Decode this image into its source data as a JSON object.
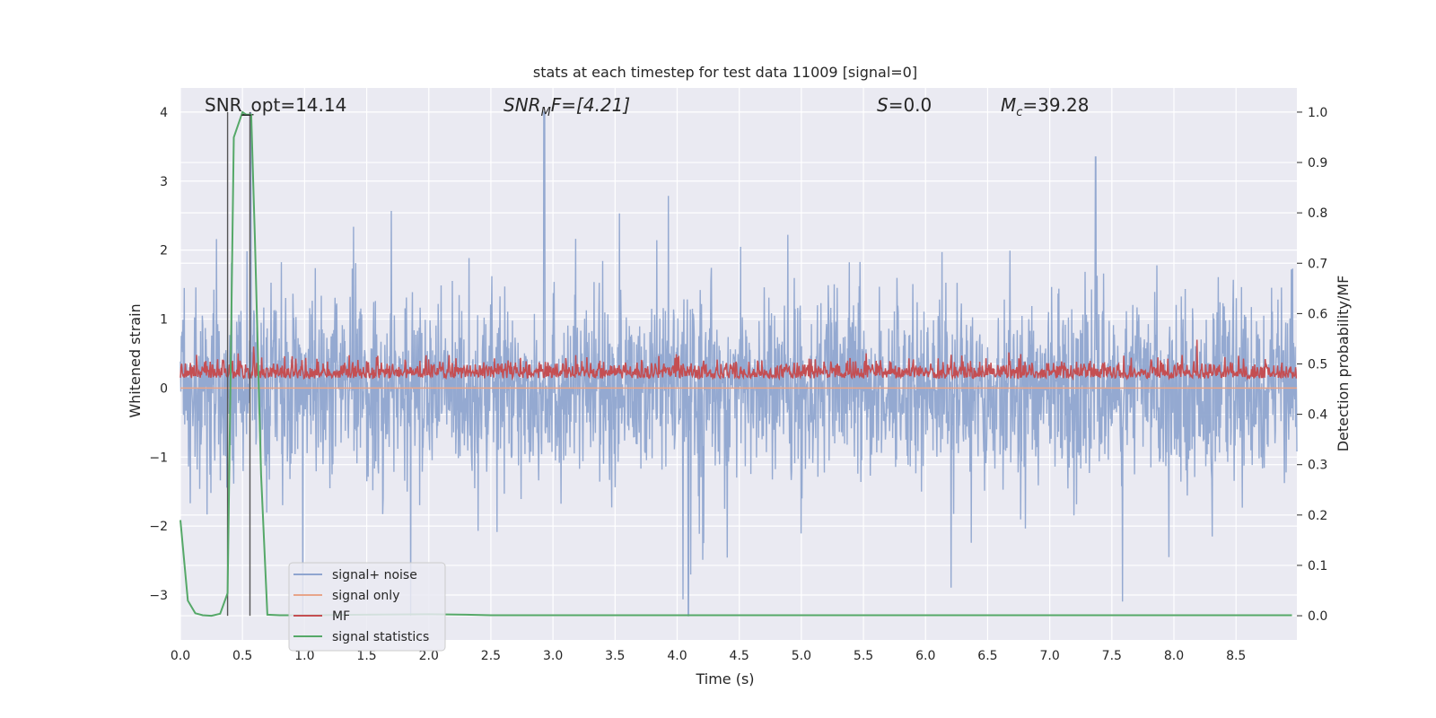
{
  "chart_data": {
    "type": "line",
    "title": "stats at each timestep for test data 11009 [signal=0]",
    "xlabel": "Time (s)",
    "ylabel": "Whitened strain",
    "y2label": "Detection probability/MF",
    "xlim": [
      0.0,
      8.99
    ],
    "ylim": [
      -3.65,
      4.35
    ],
    "y2lim": [
      -0.048,
      1.048
    ],
    "xticks": [
      "0.0",
      "0.5",
      "1.0",
      "1.5",
      "2.0",
      "2.5",
      "3.0",
      "3.5",
      "4.0",
      "4.5",
      "5.0",
      "5.5",
      "6.0",
      "6.5",
      "7.0",
      "7.5",
      "8.0",
      "8.5"
    ],
    "yticks": [
      "4",
      "3",
      "2",
      "1",
      "0",
      "−1",
      "−2",
      "−3"
    ],
    "y2ticks": [
      "1.0",
      "0.9",
      "0.8",
      "0.7",
      "0.6",
      "0.5",
      "0.4",
      "0.3",
      "0.2",
      "0.1",
      "0.0"
    ],
    "annotations": {
      "snr_opt": "SNR_opt=14.14",
      "snr_mf_prefix": "SNR",
      "snr_mf_sub": "M",
      "snr_mf_suffix": "F=[4.21]",
      "s_label": "S",
      "s_value": "=0.0",
      "mc_label": "M",
      "mc_sub": "c",
      "mc_value": "=39.28"
    },
    "legend": [
      "signal+ noise",
      "signal only",
      "MF",
      "signal statistics"
    ],
    "vlines_x": [
      0.38,
      0.56
    ],
    "series": [
      {
        "name": "signal+ noise",
        "color": "#8fa5cf",
        "description": "noisy whitened strain, roughly ±1.2 envelope with spikes to ~4 near t=2.93 and ~-3.3 near t=4.09",
        "range": [
          -3.3,
          4.0
        ]
      },
      {
        "name": "signal only",
        "color": "#e8a58a",
        "values_const": 0.0
      },
      {
        "name": "MF",
        "color": "#c44e52",
        "description": "matched filter output, 0.0 to 1.0, centered ~0.25"
      },
      {
        "name": "signal statistics",
        "color": "#55a868",
        "x": [
          0.0,
          0.06,
          0.12,
          0.18,
          0.25,
          0.32,
          0.38,
          0.43,
          0.5,
          0.53,
          0.57,
          0.6,
          0.65,
          0.7,
          0.8,
          1.0,
          1.5,
          2.0,
          2.3,
          2.5,
          3.0,
          4.0,
          5.0,
          6.0,
          7.0,
          8.0,
          8.95
        ],
        "values": [
          0.19,
          0.03,
          0.005,
          0.001,
          0.0,
          0.004,
          0.045,
          0.95,
          1.0,
          0.995,
          0.995,
          0.75,
          0.28,
          0.002,
          0.001,
          0.001,
          0.002,
          0.003,
          0.002,
          0.001,
          0.001,
          0.001,
          0.001,
          0.001,
          0.001,
          0.001,
          0.001
        ]
      }
    ],
    "colors": {
      "background": "#eaeaf2",
      "grid": "#ffffff",
      "text": "#262626"
    }
  }
}
